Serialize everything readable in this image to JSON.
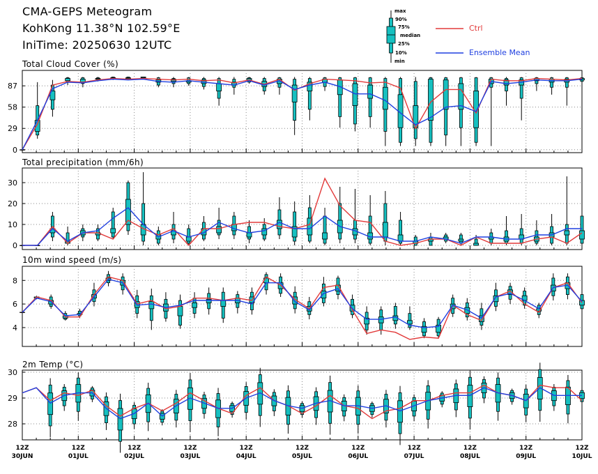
{
  "header": {
    "title": "CMA-GEPS Meteogram",
    "location": "KohKong 11.38°N 102.59°E",
    "init_time": "IniTime: 20250630 12UTC"
  },
  "legend": {
    "box_key": {
      "max": "max",
      "p90": "90%",
      "p75": "75%",
      "median": "median",
      "p25": "25%",
      "p10": "10%",
      "min": "min"
    },
    "ctrl_label": "Ctrl",
    "mean_label": "Ensemble Mean",
    "colors": {
      "ctrl": "#e23a3a",
      "mean": "#1f3fe0",
      "box": "#16c0c0"
    }
  },
  "x_axis": {
    "hour_label": "12Z",
    "date_labels": [
      "30JUN",
      "01JUL",
      "02JUL",
      "03JUL",
      "04JUL",
      "05JUL",
      "06JUL",
      "07JUL",
      "08JUL",
      "09JUL",
      "10JUL"
    ]
  },
  "chart_data": [
    {
      "type": "box",
      "title": "Total Cloud Cover (%)",
      "ylim": [
        -4,
        108
      ],
      "yticks": [
        0,
        29,
        58,
        87
      ],
      "ytick_labels": [
        "0",
        "29",
        "58",
        "87"
      ],
      "ctrl": [
        0,
        35,
        88,
        93,
        92,
        95,
        97,
        96,
        97,
        96,
        95,
        96,
        94,
        95,
        91,
        95,
        89,
        96,
        81,
        90,
        96,
        95,
        94,
        91,
        92,
        84,
        29,
        65,
        82,
        82,
        50,
        96,
        94,
        94,
        97,
        96,
        95,
        97
      ],
      "mean": [
        0,
        40,
        83,
        92,
        91,
        94,
        96,
        95,
        96,
        93,
        92,
        94,
        92,
        90,
        88,
        94,
        88,
        94,
        82,
        88,
        92,
        86,
        76,
        76,
        67,
        50,
        34,
        44,
        58,
        60,
        52,
        93,
        90,
        92,
        95,
        94,
        94,
        96
      ],
      "boxes": [
        [
          0,
          0,
          0,
          0,
          0,
          0
        ],
        [
          15,
          20,
          25,
          40,
          60,
          92
        ],
        [
          45,
          55,
          68,
          80,
          88,
          95
        ],
        [
          88,
          92,
          94,
          97,
          98,
          99
        ],
        [
          85,
          90,
          92,
          96,
          98,
          99
        ],
        [
          93,
          95,
          96,
          97,
          98,
          99
        ],
        [
          95,
          97,
          98,
          98,
          99,
          99
        ],
        [
          95,
          96,
          97,
          98,
          99,
          99
        ],
        [
          96,
          97,
          98,
          99,
          99,
          99
        ],
        [
          85,
          88,
          92,
          95,
          98,
          99
        ],
        [
          85,
          90,
          93,
          96,
          97,
          99
        ],
        [
          87,
          90,
          92,
          94,
          98,
          99
        ],
        [
          82,
          86,
          90,
          95,
          97,
          99
        ],
        [
          60,
          70,
          80,
          90,
          97,
          99
        ],
        [
          75,
          85,
          88,
          92,
          96,
          99
        ],
        [
          90,
          92,
          95,
          97,
          98,
          99
        ],
        [
          75,
          80,
          86,
          93,
          97,
          99
        ],
        [
          75,
          85,
          90,
          96,
          98,
          99
        ],
        [
          20,
          40,
          65,
          88,
          96,
          99
        ],
        [
          40,
          55,
          80,
          92,
          97,
          99
        ],
        [
          80,
          86,
          92,
          96,
          98,
          99
        ],
        [
          30,
          45,
          75,
          95,
          98,
          99
        ],
        [
          25,
          35,
          60,
          90,
          98,
          99
        ],
        [
          30,
          45,
          70,
          88,
          98,
          99
        ],
        [
          5,
          25,
          55,
          85,
          97,
          99
        ],
        [
          5,
          10,
          30,
          75,
          97,
          99
        ],
        [
          5,
          15,
          30,
          60,
          93,
          99
        ],
        [
          5,
          10,
          40,
          96,
          98,
          99
        ],
        [
          5,
          20,
          55,
          95,
          98,
          99
        ],
        [
          5,
          30,
          55,
          90,
          98,
          99
        ],
        [
          5,
          10,
          30,
          80,
          98,
          99
        ],
        [
          5,
          85,
          90,
          96,
          98,
          99
        ],
        [
          60,
          80,
          88,
          95,
          97,
          99
        ],
        [
          40,
          70,
          88,
          95,
          98,
          99
        ],
        [
          80,
          90,
          94,
          97,
          98,
          99
        ],
        [
          75,
          85,
          92,
          96,
          98,
          99
        ],
        [
          60,
          85,
          92,
          96,
          98,
          99
        ],
        [
          90,
          93,
          95,
          97,
          98,
          99
        ]
      ]
    },
    {
      "type": "box",
      "title": "Total precipitation (mm/6h)",
      "ylim": [
        -2,
        37
      ],
      "yticks": [
        0,
        10,
        20,
        30
      ],
      "ytick_labels": [
        "0",
        "10",
        "20",
        "30"
      ],
      "ctrl": [
        0,
        0,
        9,
        1,
        6,
        6,
        3,
        12,
        8,
        5,
        8,
        0,
        8,
        8,
        10,
        11,
        11,
        9,
        8,
        10,
        32,
        19,
        12,
        11,
        2,
        0,
        1,
        3,
        3,
        0,
        4,
        1,
        1,
        1,
        3,
        4,
        1,
        6
      ],
      "mean": [
        0,
        0,
        8,
        2,
        6,
        7,
        13,
        18,
        10,
        4,
        7,
        4,
        6,
        11,
        8,
        6,
        7,
        11,
        8,
        8,
        14,
        9,
        7,
        4,
        4,
        2,
        2,
        4,
        3,
        1,
        4,
        4,
        3,
        3,
        5,
        5,
        8,
        8
      ],
      "boxes": [
        [
          0,
          0,
          0,
          0,
          0,
          0
        ],
        [
          0,
          0,
          0,
          0,
          0,
          0
        ],
        [
          2,
          4,
          6,
          8,
          14,
          16
        ],
        [
          0,
          1,
          1,
          2,
          6,
          9
        ],
        [
          2,
          4,
          5,
          7,
          8,
          10
        ],
        [
          2,
          3,
          5,
          6,
          8,
          10
        ],
        [
          3,
          4,
          6,
          8,
          16,
          18
        ],
        [
          5,
          7,
          10,
          22,
          30,
          31
        ],
        [
          0,
          2,
          5,
          10,
          20,
          35
        ],
        [
          0,
          1,
          3,
          5,
          7,
          9
        ],
        [
          1,
          3,
          5,
          7,
          10,
          16
        ],
        [
          0,
          1,
          2,
          4,
          8,
          10
        ],
        [
          2,
          3,
          5,
          8,
          11,
          14
        ],
        [
          3,
          5,
          6,
          9,
          12,
          18
        ],
        [
          3,
          5,
          7,
          10,
          14,
          16
        ],
        [
          1,
          3,
          4,
          6,
          9,
          12
        ],
        [
          2,
          3,
          5,
          8,
          10,
          13
        ],
        [
          3,
          5,
          8,
          12,
          17,
          23
        ],
        [
          0,
          2,
          4,
          9,
          16,
          21
        ],
        [
          1,
          2,
          5,
          13,
          18,
          24
        ],
        [
          0,
          1,
          3,
          6,
          14,
          18
        ],
        [
          1,
          3,
          6,
          12,
          20,
          28
        ],
        [
          1,
          3,
          5,
          8,
          12,
          27
        ],
        [
          0,
          1,
          3,
          6,
          14,
          24
        ],
        [
          0,
          2,
          4,
          11,
          20,
          26
        ],
        [
          0,
          1,
          2,
          5,
          12,
          16
        ],
        [
          0,
          0,
          1,
          2,
          4,
          5
        ],
        [
          0,
          0,
          2,
          3,
          4,
          6
        ],
        [
          1,
          2,
          3,
          4,
          5,
          6
        ],
        [
          0,
          1,
          2,
          3,
          5,
          6
        ],
        [
          0,
          0,
          0,
          1,
          3,
          5
        ],
        [
          0,
          1,
          3,
          4,
          6,
          8
        ],
        [
          0,
          1,
          2,
          4,
          7,
          14
        ],
        [
          0,
          1,
          3,
          5,
          8,
          15
        ],
        [
          0,
          1,
          2,
          4,
          7,
          12
        ],
        [
          0,
          1,
          4,
          6,
          9,
          15
        ],
        [
          0,
          1,
          5,
          7,
          10,
          33
        ],
        [
          0,
          1,
          3,
          7,
          14,
          16
        ]
      ]
    },
    {
      "type": "box",
      "title": "10m wind speed (m/s)",
      "ylim": [
        2.4,
        9.2
      ],
      "yticks": [
        4,
        6,
        8
      ],
      "ytick_labels": [
        "4",
        "6",
        "8"
      ],
      "ctrl": [
        5.3,
        6.6,
        6.3,
        4.9,
        4.9,
        6.8,
        8.3,
        8.0,
        6.0,
        6.3,
        5.6,
        5.8,
        6.5,
        6.5,
        6.3,
        6.5,
        6.3,
        8.3,
        7.6,
        6.4,
        5.6,
        7.4,
        7.6,
        5.5,
        3.5,
        3.8,
        3.6,
        3.0,
        3.2,
        3.1,
        5.9,
        5.1,
        4.6,
        6.6,
        7.1,
        6.0,
        5.3,
        7.4,
        7.8,
        6.1
      ],
      "mean": [
        5.3,
        6.5,
        6.2,
        5.0,
        5.1,
        6.6,
        8.1,
        7.8,
        5.9,
        6.0,
        5.7,
        5.9,
        6.3,
        6.3,
        6.3,
        6.3,
        6.0,
        7.8,
        7.8,
        6.2,
        5.5,
        6.9,
        7.3,
        5.6,
        4.7,
        4.7,
        4.9,
        4.2,
        4.0,
        4.1,
        5.9,
        5.5,
        4.8,
        6.6,
        6.9,
        6.3,
        5.6,
        7.4,
        7.6,
        6.2
      ],
      "boxes": [
        [
          5.3,
          5.3,
          5.3,
          5.3,
          5.3,
          5.3
        ],
        [
          6.4,
          6.5,
          6.5,
          6.6,
          6.6,
          6.7
        ],
        [
          5.6,
          5.8,
          6.0,
          6.3,
          6.6,
          6.8
        ],
        [
          4.6,
          4.7,
          4.8,
          5.0,
          5.2,
          5.4
        ],
        [
          4.8,
          5.0,
          5.1,
          5.2,
          5.4,
          5.6
        ],
        [
          5.8,
          6.2,
          6.5,
          6.8,
          7.2,
          7.8
        ],
        [
          7.5,
          7.8,
          8.0,
          8.2,
          8.5,
          8.8
        ],
        [
          6.8,
          7.2,
          7.6,
          8.0,
          8.3,
          8.6
        ],
        [
          4.8,
          5.2,
          5.7,
          6.2,
          6.7,
          7.2
        ],
        [
          3.8,
          4.6,
          5.6,
          6.2,
          6.7,
          7.3
        ],
        [
          4.5,
          4.8,
          5.4,
          6.0,
          6.4,
          7.0
        ],
        [
          3.9,
          4.2,
          5.0,
          5.8,
          6.3,
          6.8
        ],
        [
          4.8,
          5.2,
          5.7,
          6.1,
          6.5,
          7.0
        ],
        [
          5.1,
          5.6,
          6.1,
          6.4,
          6.9,
          7.4
        ],
        [
          4.4,
          4.8,
          5.8,
          6.3,
          7.0,
          7.4
        ],
        [
          5.2,
          5.7,
          6.1,
          6.5,
          6.8,
          7.1
        ],
        [
          5.1,
          5.5,
          6.1,
          6.6,
          7.0,
          7.4
        ],
        [
          6.8,
          7.2,
          7.8,
          8.2,
          8.5,
          8.7
        ],
        [
          6.6,
          6.9,
          7.3,
          7.8,
          8.3,
          8.6
        ],
        [
          5.2,
          5.6,
          6.0,
          6.6,
          7.0,
          7.5
        ],
        [
          4.7,
          5.1,
          5.4,
          5.8,
          6.2,
          6.6
        ],
        [
          5.8,
          6.1,
          6.5,
          7.1,
          7.7,
          8.3
        ],
        [
          6.4,
          6.8,
          7.1,
          7.6,
          8.2,
          8.4
        ],
        [
          4.8,
          5.1,
          5.4,
          5.9,
          6.4,
          6.8
        ],
        [
          3.4,
          3.8,
          4.3,
          4.8,
          5.3,
          5.8
        ],
        [
          3.4,
          3.8,
          4.4,
          4.9,
          5.5,
          5.8
        ],
        [
          3.9,
          4.3,
          4.6,
          5.0,
          5.8,
          6.1
        ],
        [
          3.8,
          4.0,
          4.3,
          4.6,
          5.2,
          5.8
        ],
        [
          3.1,
          3.3,
          3.6,
          4.1,
          4.5,
          4.8
        ],
        [
          3.1,
          3.3,
          3.6,
          4.2,
          4.7,
          4.9
        ],
        [
          4.9,
          5.2,
          5.6,
          6.0,
          6.5,
          6.8
        ],
        [
          4.6,
          4.9,
          5.2,
          5.7,
          6.1,
          6.5
        ],
        [
          3.8,
          4.2,
          4.5,
          5.0,
          5.6,
          6.1
        ],
        [
          5.4,
          5.8,
          6.2,
          6.7,
          7.2,
          7.8
        ],
        [
          6.0,
          6.4,
          6.8,
          7.2,
          7.5,
          7.8
        ],
        [
          5.6,
          5.9,
          6.3,
          6.7,
          7.1,
          7.4
        ],
        [
          4.8,
          5.1,
          5.4,
          5.6,
          5.9,
          6.1
        ],
        [
          6.3,
          6.7,
          7.1,
          7.6,
          8.2,
          8.6
        ],
        [
          6.4,
          6.8,
          7.3,
          7.8,
          8.3,
          8.6
        ],
        [
          5.3,
          5.6,
          5.9,
          6.3,
          6.8,
          7.2
        ]
      ]
    },
    {
      "type": "box",
      "title": "2m Temp (°C)",
      "ylim": [
        27.38,
        30.08
      ],
      "yticks": [
        28,
        29,
        30
      ],
      "ytick_labels": [
        "28",
        "29",
        "30"
      ],
      "ctrl": [
        29.2,
        29.4,
        28.9,
        29.2,
        29.1,
        29.3,
        28.7,
        28.3,
        28.6,
        28.8,
        28.5,
        28.8,
        29.2,
        28.9,
        28.6,
        28.4,
        29.1,
        29.4,
        28.9,
        28.7,
        28.4,
        28.7,
        29.1,
        28.7,
        28.6,
        28.2,
        28.5,
        28.6,
        28.9,
        28.9,
        29.1,
        29.2,
        29.2,
        29.5,
        29.2,
        29.1,
        28.9,
        29.5,
        29.4,
        29.4,
        28.9
      ],
      "mean": [
        29.2,
        29.4,
        28.8,
        29.1,
        29.2,
        29.2,
        28.6,
        28.2,
        28.4,
        28.8,
        28.3,
        28.7,
        29.0,
        28.8,
        28.6,
        28.6,
        29.0,
        29.2,
        28.9,
        28.7,
        28.6,
        28.8,
        28.9,
        28.7,
        28.7,
        28.6,
        28.7,
        28.5,
        28.7,
        28.9,
        29.0,
        29.1,
        29.1,
        29.4,
        29.2,
        29.1,
        28.9,
        29.4,
        29.1,
        29.1,
        29.1
      ]
    }
  ]
}
